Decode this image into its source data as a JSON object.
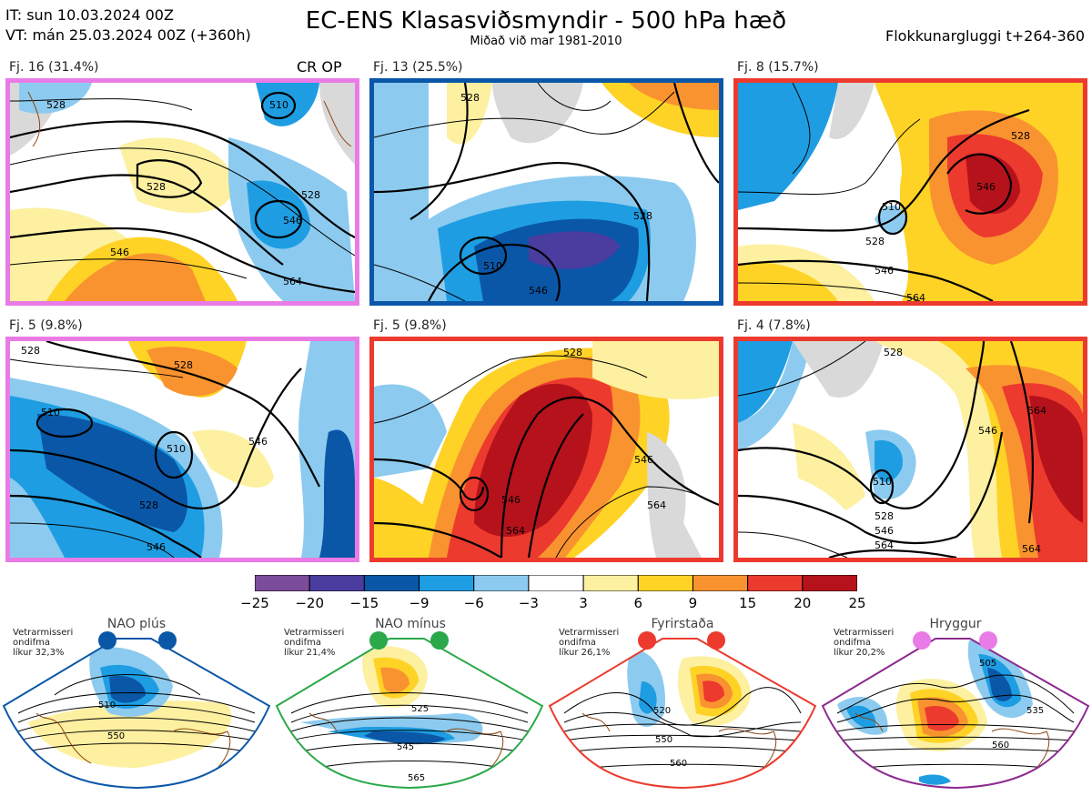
{
  "header": {
    "it": "IT: sun 10.03.2024 00Z",
    "vt": "VT: mán 25.03.2024 00Z  (+360h)",
    "title": "EC-ENS Klasasviðsmyndir - 500 hPa hæð",
    "subtitle": "Miðað við mar 1981-2010",
    "window": "Flokkunargluggi t+264-360"
  },
  "op_label": "CR OP",
  "colors": {
    "neg25": "#7b4c9a",
    "neg20": "#4b3ca0",
    "neg15": "#0a57a8",
    "neg9": "#1e9de2",
    "neg6": "#8ccbef",
    "neutral": "#ffffff",
    "pos3": "#fdf0a0",
    "pos6": "#fed326",
    "pos9": "#f9932f",
    "pos15": "#ec3a2e",
    "pos20": "#b5121b",
    "land": "#d9d9d9",
    "coast": "#8b4513",
    "contour": "#000000"
  },
  "panels": [
    {
      "label": "Fj. 16 (31.4%)",
      "border": "#e97be6",
      "contours": [
        "510",
        "528",
        "528",
        "528",
        "546",
        "546",
        "564"
      ]
    },
    {
      "label": "Fj. 13 (25.5%)",
      "border": "#0a57a8",
      "contours": [
        "528",
        "546",
        "528",
        "510"
      ]
    },
    {
      "label": "Fj. 8 (15.7%)",
      "border": "#ec3a2e",
      "contours": [
        "528",
        "546",
        "528",
        "510",
        "546",
        "564"
      ]
    },
    {
      "label": "Fj. 5 (9.8%)",
      "border": "#e97be6",
      "contours": [
        "528",
        "510",
        "528",
        "546",
        "510",
        "528",
        "546"
      ]
    },
    {
      "label": "Fj. 5 (9.8%)",
      "border": "#ec3a2e",
      "contours": [
        "528",
        "546",
        "546",
        "564",
        "564"
      ]
    },
    {
      "label": "Fj. 4 (7.8%)",
      "border": "#ec3a2e",
      "contours": [
        "528",
        "546",
        "564",
        "510",
        "528",
        "546",
        "564",
        "564"
      ]
    }
  ],
  "colorbar": {
    "ticks": [
      "−25",
      "−20",
      "−15",
      "−9",
      "−6",
      "−3",
      "3",
      "6",
      "9",
      "15",
      "20",
      "25"
    ],
    "colors": [
      "#7b4c9a",
      "#4b3ca0",
      "#0a57a8",
      "#1e9de2",
      "#8ccbef",
      "#ffffff",
      "#fdf0a0",
      "#fed326",
      "#f9932f",
      "#ec3a2e",
      "#b5121b"
    ]
  },
  "regimes": [
    {
      "title": "NAO plús",
      "note1": "Vetrarmisseri",
      "note2": "ondifma",
      "note3": "líkur 32,3%",
      "border": "#0a57a8",
      "dot": "#0a57a8",
      "contours": [
        "510",
        "550"
      ]
    },
    {
      "title": "NAO mínus",
      "note1": "Vetrarmisseri",
      "note2": "ondifma",
      "note3": "líkur 21,4%",
      "border": "#2aa84a",
      "dot": "#2aa84a",
      "contours": [
        "525",
        "545",
        "565"
      ]
    },
    {
      "title": "Fyrirstaða",
      "note1": "Vetrarmisseri",
      "note2": "ondifma",
      "note3": "líkur 26,1%",
      "border": "#ec3a2e",
      "dot": "#ec3a2e",
      "contours": [
        "520",
        "550",
        "560"
      ]
    },
    {
      "title": "Hryggur",
      "note1": "Vetrarmisseri",
      "note2": "ondifma",
      "note3": "líkur 20,2%",
      "border": "#8b2a8f",
      "dot": "#e97be6",
      "contours": [
        "505",
        "535",
        "560"
      ]
    }
  ]
}
